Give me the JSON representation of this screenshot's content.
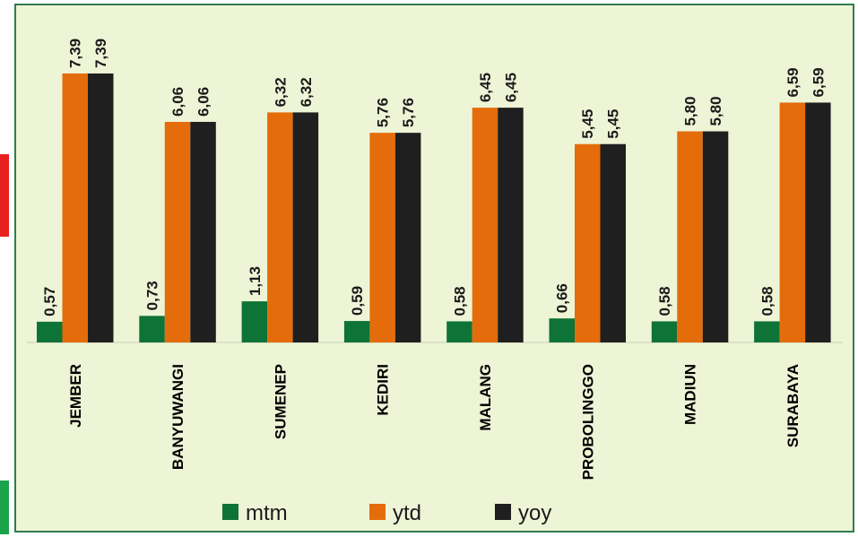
{
  "colors": {
    "mtm": "#0e7336",
    "ytd": "#e46c0a",
    "yoy": "#1f1f1f",
    "background": "#eef4d6",
    "frame": "#2e7d4f",
    "edge_red": "#e8201e",
    "edge_green": "#1aa34a"
  },
  "chart_data": {
    "type": "bar",
    "categories": [
      "JEMBER",
      "BANYUWANGI",
      "SUMENEP",
      "KEDIRI",
      "MALANG",
      "PROBOLINGGO",
      "MADIUN",
      "SURABAYA"
    ],
    "series": [
      {
        "name": "mtm",
        "values": [
          0.57,
          0.73,
          1.13,
          0.59,
          0.58,
          0.66,
          0.58,
          0.58
        ],
        "labels": [
          "0,57",
          "0,73",
          "1,13",
          "0,59",
          "0,58",
          "0,66",
          "0,58",
          "0,58"
        ]
      },
      {
        "name": "ytd",
        "values": [
          7.39,
          6.06,
          6.32,
          5.76,
          6.45,
          5.45,
          5.8,
          6.59
        ],
        "labels": [
          "7,39",
          "6,06",
          "6,32",
          "5,76",
          "6,45",
          "5,45",
          "5,80",
          "6,59"
        ]
      },
      {
        "name": "yoy",
        "values": [
          7.39,
          6.06,
          6.32,
          5.76,
          6.45,
          5.45,
          5.8,
          6.59
        ],
        "labels": [
          "7,39",
          "6,06",
          "6,32",
          "5,76",
          "6,45",
          "5,45",
          "5,80",
          "6,59"
        ]
      }
    ],
    "ylim": [
      0,
      7.5
    ],
    "grid": false,
    "legend_position": "bottom",
    "data_labels_rotated": true,
    "category_labels_rotated": true
  }
}
